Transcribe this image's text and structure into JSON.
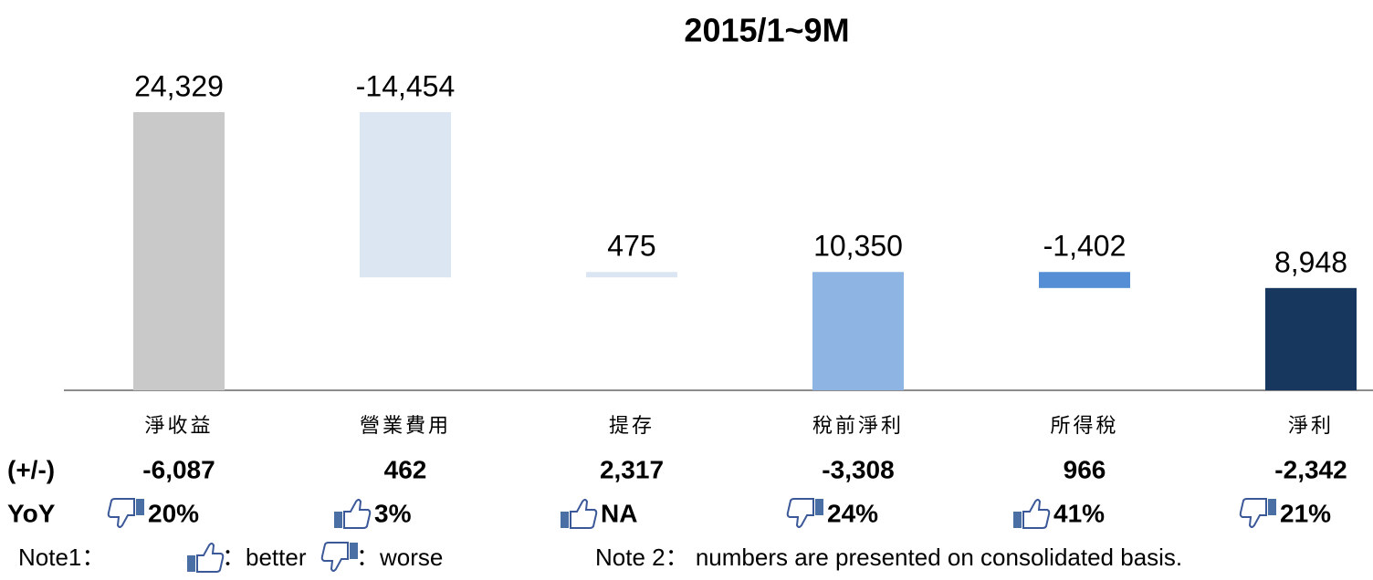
{
  "chart_data": {
    "type": "waterfall",
    "title": "2015/1~9M",
    "categories": [
      "淨收益",
      "營業費用",
      "提存",
      "稅前淨利",
      "所得稅",
      "淨利"
    ],
    "values": [
      24329,
      -14454,
      475,
      10350,
      -1402,
      8948
    ],
    "value_labels": [
      "24,329",
      "-14,454",
      "475",
      "10,350",
      "-1,402",
      "8,948"
    ],
    "measure": [
      "absolute",
      "relative",
      "relative",
      "total",
      "relative",
      "total"
    ],
    "colors": [
      "#c9c9c9",
      "#dce6f2",
      "#dce6f2",
      "#8eb4e3",
      "#558ed5",
      "#17375e"
    ]
  },
  "table": {
    "change_label": "(+/-)",
    "change": [
      "-6,087",
      "462",
      "2,317",
      "-3,308",
      "966",
      "-2,342"
    ],
    "yoy_label": "YoY",
    "yoy": [
      "20%",
      "3%",
      "NA",
      "24%",
      "41%",
      "21%"
    ],
    "yoy_icons": [
      "down",
      "up",
      "up",
      "down",
      "up",
      "down"
    ]
  },
  "notes": {
    "note1": "Note1：",
    "better": "：better",
    "worse": "：worse",
    "note2": "Note 2： numbers are presented on consolidated basis."
  }
}
